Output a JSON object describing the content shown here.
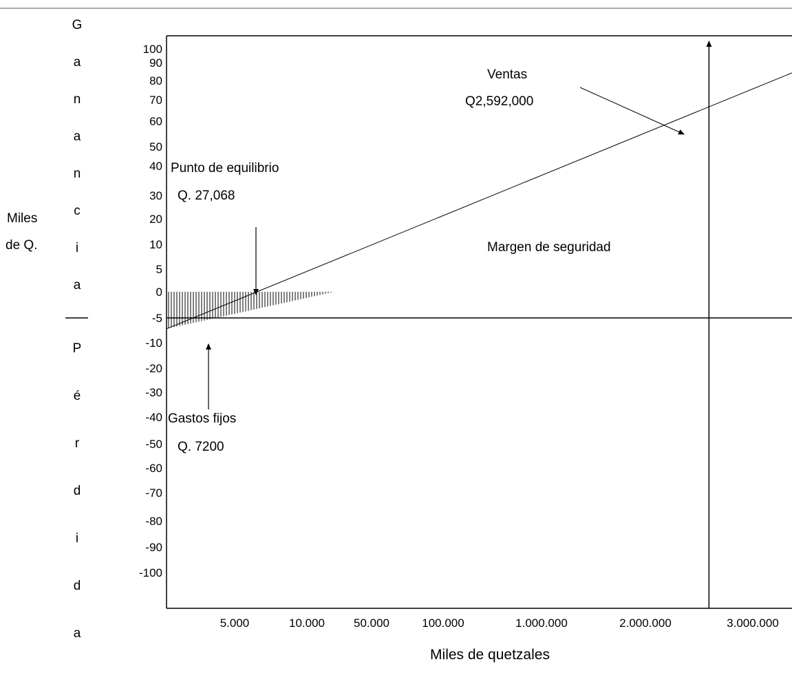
{
  "chart_data": {
    "type": "line",
    "title": "",
    "xlabel": "Miles de quetzales",
    "ylabel": [
      "Miles",
      "de Q."
    ],
    "y_upper_letters": [
      "G",
      "a",
      "n",
      "a",
      "n",
      "c",
      "i",
      "a"
    ],
    "y_lower_letters": [
      "P",
      "é",
      "r",
      "d",
      "i",
      "d",
      "a"
    ],
    "y_ticks": [
      "100",
      "90",
      "80",
      "70",
      "60",
      "50",
      "40",
      "30",
      "20",
      "10",
      "5",
      "0",
      "-5",
      "-10",
      "-20",
      "-30",
      "-40",
      "-50",
      "-60",
      "-70",
      "-80",
      "-90",
      "-100"
    ],
    "x_ticks": [
      "5.000",
      "10.000",
      "50.000",
      "100.000",
      "1.000.000",
      "2.000.000",
      "3.000.000"
    ],
    "x_scale": "non-uniform",
    "grid": false,
    "series": [
      {
        "x": [
          0,
          27068,
          2592000
        ],
        "y": [
          -7.2,
          0,
          64
        ]
      }
    ],
    "annotations": {
      "break_even": {
        "line1": "Punto de equilibrio",
        "line2": "Q.  27,068",
        "x": 27068,
        "y": 0
      },
      "sales": {
        "line1": "Ventas",
        "line2": "Q2,592,000",
        "x": 2592000,
        "y": 64
      },
      "fixed_costs": {
        "line1": "Gastos fijos",
        "line2": "Q.  7200",
        "y": -7.2
      },
      "safety_margin": "Margen de seguridad"
    }
  }
}
